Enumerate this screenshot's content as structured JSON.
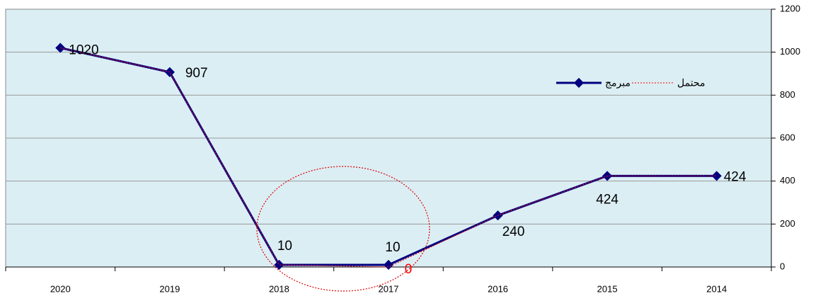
{
  "chart_data": {
    "type": "line",
    "categories": [
      "2020",
      "2019",
      "2018",
      "2017",
      "2016",
      "2015",
      "2014"
    ],
    "series": [
      {
        "name": "مبرمج",
        "color": "#000080",
        "values": [
          1020,
          907,
          10,
          10,
          240,
          424,
          424
        ]
      },
      {
        "name": "محتمل",
        "color": "#ff0000",
        "values": [
          1020,
          907,
          10,
          0,
          240,
          424,
          424
        ],
        "value_labels": [
          null,
          null,
          null,
          "0",
          null,
          null,
          null
        ]
      }
    ],
    "ylim": [
      0,
      1200
    ],
    "yticks": [
      0,
      200,
      400,
      600,
      800,
      1000,
      1200
    ],
    "grid": true,
    "legend": "upper right"
  }
}
